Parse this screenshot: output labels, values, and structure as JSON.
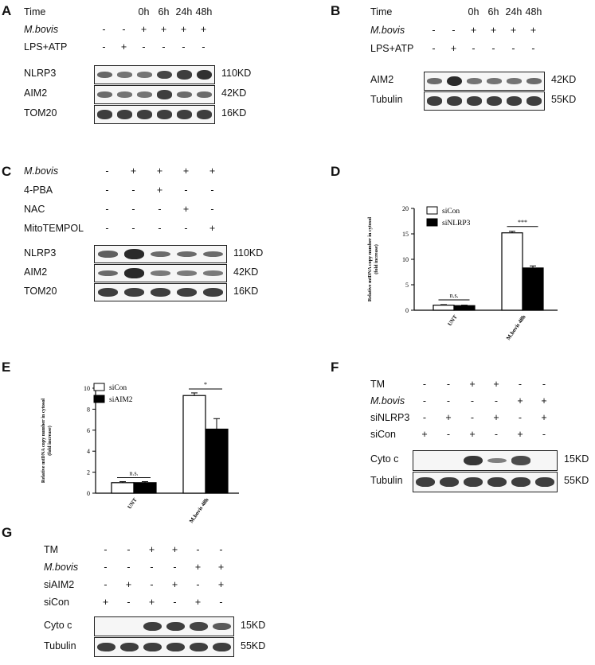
{
  "panels": {
    "A": {
      "label": "A",
      "rows": [
        {
          "name": "Time",
          "italic": false,
          "values": [
            "",
            "",
            "0h",
            "6h",
            "24h",
            "48h"
          ]
        },
        {
          "name": "M.bovis",
          "italic": true,
          "values": [
            "-",
            "-",
            "+",
            "+",
            "+",
            "+"
          ]
        },
        {
          "name": "LPS+ATP",
          "italic": false,
          "values": [
            "-",
            "+",
            "-",
            "-",
            "-",
            "-"
          ]
        }
      ],
      "blots": [
        {
          "name": "NLRP3",
          "kd": "110KD",
          "intensity": [
            0.55,
            0.45,
            0.45,
            0.8,
            0.85,
            0.95
          ]
        },
        {
          "name": "AIM2",
          "kd": "42KD",
          "intensity": [
            0.5,
            0.45,
            0.45,
            0.85,
            0.5,
            0.5
          ]
        },
        {
          "name": "TOM20",
          "kd": "16KD",
          "intensity": [
            0.85,
            0.85,
            0.85,
            0.85,
            0.85,
            0.85
          ]
        }
      ]
    },
    "B": {
      "label": "B",
      "rows": [
        {
          "name": "Time",
          "italic": false,
          "values": [
            "",
            "",
            "0h",
            "6h",
            "24h",
            "48h"
          ]
        },
        {
          "name": "M.bovis",
          "italic": true,
          "values": [
            "-",
            "-",
            "+",
            "+",
            "+",
            "+"
          ]
        },
        {
          "name": "LPS+ATP",
          "italic": false,
          "values": [
            "-",
            "+",
            "-",
            "-",
            "-",
            "-"
          ]
        }
      ],
      "blots": [
        {
          "name": "AIM2",
          "kd": "42KD",
          "intensity": [
            0.5,
            1.0,
            0.45,
            0.45,
            0.45,
            0.5
          ]
        },
        {
          "name": "Tubulin",
          "kd": "55KD",
          "intensity": [
            0.85,
            0.85,
            0.85,
            0.85,
            0.85,
            0.85
          ]
        }
      ]
    },
    "C": {
      "label": "C",
      "rows": [
        {
          "name": "M.bovis",
          "italic": true,
          "values": [
            "-",
            "+",
            "+",
            "+",
            "+"
          ]
        },
        {
          "name": "4-PBA",
          "italic": false,
          "values": [
            "-",
            "-",
            "+",
            "-",
            "-"
          ]
        },
        {
          "name": "NAC",
          "italic": false,
          "values": [
            "-",
            "-",
            "-",
            "+",
            "-"
          ]
        },
        {
          "name": "MitoTEMPOL",
          "italic": false,
          "values": [
            "-",
            "-",
            "-",
            "-",
            "+"
          ]
        }
      ],
      "blots": [
        {
          "name": "NLRP3",
          "kd": "110KD",
          "intensity": [
            0.6,
            1.0,
            0.5,
            0.5,
            0.5
          ]
        },
        {
          "name": "AIM2",
          "kd": "42KD",
          "intensity": [
            0.5,
            1.0,
            0.4,
            0.4,
            0.4
          ]
        },
        {
          "name": "TOM20",
          "kd": "16KD",
          "intensity": [
            0.85,
            0.85,
            0.85,
            0.85,
            0.85
          ]
        }
      ]
    },
    "F": {
      "label": "F",
      "rows": [
        {
          "name": "TM",
          "italic": false,
          "values": [
            "-",
            "-",
            "+",
            "+",
            "-",
            "-"
          ]
        },
        {
          "name": "M.bovis",
          "italic": true,
          "values": [
            "-",
            "-",
            "-",
            "-",
            "+",
            "+"
          ]
        },
        {
          "name": "siNLRP3",
          "italic": false,
          "values": [
            "-",
            "+",
            "-",
            "+",
            "-",
            "+"
          ]
        },
        {
          "name": "siCon",
          "italic": false,
          "values": [
            "+",
            "-",
            "+",
            "-",
            "+",
            "-"
          ]
        }
      ],
      "blots": [
        {
          "name": "Cyto c",
          "kd": "15KD",
          "intensity": [
            0.0,
            0.0,
            0.9,
            0.35,
            0.75,
            0.0
          ]
        },
        {
          "name": "Tubulin",
          "kd": "55KD",
          "intensity": [
            0.85,
            0.85,
            0.85,
            0.85,
            0.85,
            0.85
          ]
        }
      ]
    },
    "G": {
      "label": "G",
      "rows": [
        {
          "name": "TM",
          "italic": false,
          "values": [
            "-",
            "-",
            "+",
            "+",
            "-",
            "-"
          ]
        },
        {
          "name": "M.bovis",
          "italic": true,
          "values": [
            "-",
            "-",
            "-",
            "-",
            "+",
            "+"
          ]
        },
        {
          "name": "siAIM2",
          "italic": false,
          "values": [
            "-",
            "+",
            "-",
            "+",
            "-",
            "+"
          ]
        },
        {
          "name": "siCon",
          "italic": false,
          "values": [
            "+",
            "-",
            "+",
            "-",
            "+",
            "-"
          ]
        }
      ],
      "blots": [
        {
          "name": "Cyto c",
          "kd": "15KD",
          "intensity": [
            0.0,
            0.0,
            0.85,
            0.85,
            0.8,
            0.65
          ]
        },
        {
          "name": "Tubulin",
          "kd": "55KD",
          "intensity": [
            0.85,
            0.85,
            0.85,
            0.85,
            0.85,
            0.85
          ]
        }
      ]
    }
  },
  "chart_data": [
    {
      "panel": "D",
      "type": "bar",
      "categories": [
        "UNT",
        "M.bovis 48h"
      ],
      "series": [
        {
          "name": "siCon",
          "values": [
            1.0,
            15.2
          ],
          "errors": [
            0.1,
            0.3
          ]
        },
        {
          "name": "siNLRP3",
          "values": [
            0.9,
            8.3
          ],
          "errors": [
            0.1,
            0.4
          ]
        }
      ],
      "ylabel": "Relative mtDNA copy number in cytosol (fold increase)",
      "ylim": [
        0,
        20
      ],
      "yticks": [
        "0",
        "5",
        "10",
        "15",
        "20"
      ],
      "annotations": [
        "n.s.",
        "***"
      ],
      "legend": "top-left"
    },
    {
      "panel": "E",
      "type": "bar",
      "categories": [
        "UNT",
        "M.bovis 48h"
      ],
      "series": [
        {
          "name": "siCon",
          "values": [
            1.0,
            9.3
          ],
          "errors": [
            0.1,
            0.25
          ]
        },
        {
          "name": "siAIM2",
          "values": [
            1.0,
            6.1
          ],
          "errors": [
            0.1,
            1.0
          ]
        }
      ],
      "ylabel": "Relative mtDNA copy number in cytosol (fold increase)",
      "ylim": [
        0,
        10
      ],
      "yticks": [
        "0",
        "2",
        "4",
        "6",
        "8",
        "10"
      ],
      "annotations": [
        "n.s.",
        "*"
      ],
      "legend": "top-left"
    }
  ],
  "chart_labels": {
    "D": "D",
    "E": "E"
  }
}
